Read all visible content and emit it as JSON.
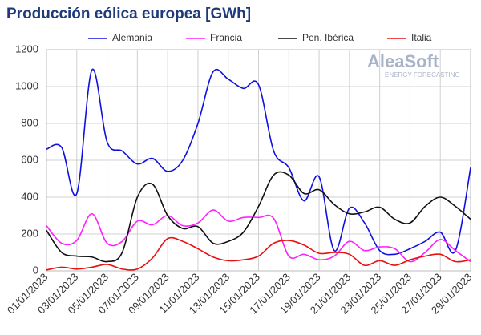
{
  "chart_data": {
    "type": "line",
    "title": "Producción eólica europea [GWh]",
    "watermark": {
      "brand": "AleaSoft",
      "tagline": "ENERGY FORECASTING"
    },
    "categories": [
      "01/01/2023",
      null,
      "03/01/2023",
      null,
      "05/01/2023",
      null,
      "07/01/2023",
      null,
      "09/01/2023",
      null,
      "11/01/2023",
      null,
      "13/01/2023",
      null,
      "15/01/2023",
      null,
      "17/01/2023",
      null,
      "19/01/2023",
      null,
      "21/01/2023",
      null,
      "23/01/2023",
      null,
      "25/01/2023",
      null,
      "27/01/2023",
      null,
      "29/01/2023"
    ],
    "series": [
      {
        "name": "Alemania",
        "color": "#1010e0",
        "values": [
          660,
          670,
          420,
          1090,
          700,
          650,
          580,
          610,
          540,
          600,
          800,
          1080,
          1040,
          990,
          1010,
          650,
          560,
          380,
          510,
          110,
          340,
          260,
          110,
          90,
          120,
          160,
          210,
          110,
          560
        ]
      },
      {
        "name": "Francia",
        "color": "#ff20ff",
        "values": [
          245,
          150,
          165,
          310,
          150,
          160,
          270,
          250,
          300,
          245,
          260,
          330,
          270,
          290,
          290,
          285,
          80,
          90,
          60,
          80,
          160,
          110,
          130,
          120,
          50,
          100,
          170,
          110,
          50
        ]
      },
      {
        "name": "Pen. Ibérica",
        "color": "#111111",
        "values": [
          220,
          100,
          80,
          75,
          50,
          100,
          400,
          470,
          300,
          230,
          240,
          150,
          160,
          210,
          350,
          520,
          520,
          420,
          440,
          360,
          310,
          320,
          345,
          280,
          260,
          350,
          400,
          350,
          280
        ]
      },
      {
        "name": "Italia",
        "color": "#e81010",
        "values": [
          5,
          20,
          10,
          20,
          35,
          10,
          10,
          70,
          175,
          160,
          120,
          75,
          55,
          60,
          80,
          150,
          165,
          140,
          95,
          100,
          90,
          30,
          55,
          30,
          60,
          80,
          90,
          50,
          60
        ]
      }
    ],
    "ylim": [
      0,
      1200
    ],
    "yticks": [
      0,
      200,
      400,
      600,
      800,
      1000,
      1200
    ],
    "grid": true,
    "legend": "top"
  }
}
